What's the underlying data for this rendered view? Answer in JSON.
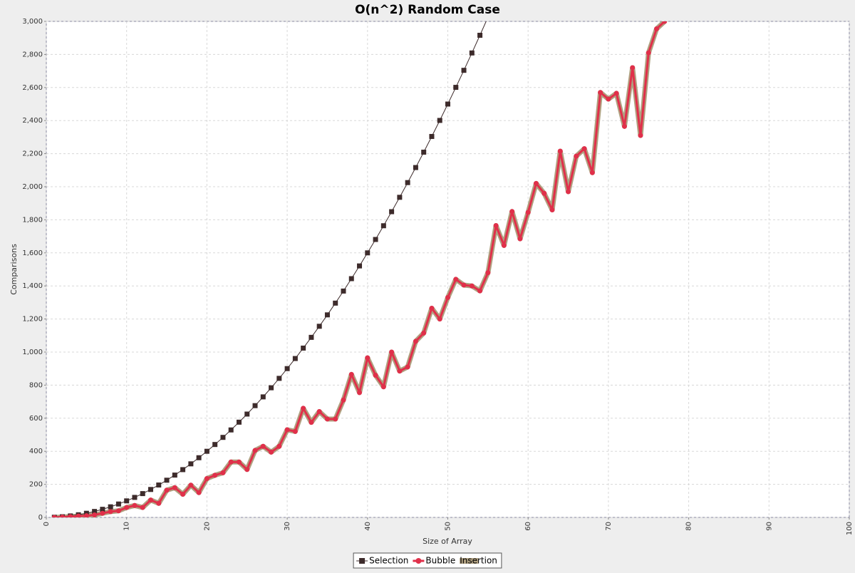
{
  "chart_data": {
    "type": "line",
    "title": "O(n^2) Random Case",
    "x_label": "Size of Array",
    "y_label": "Comparisons",
    "x": [
      1,
      2,
      3,
      4,
      5,
      6,
      7,
      8,
      9,
      10,
      11,
      12,
      13,
      14,
      15,
      16,
      17,
      18,
      19,
      20,
      21,
      22,
      23,
      24,
      25,
      26,
      27,
      28,
      29,
      30,
      31,
      32,
      33,
      34,
      35,
      36,
      37,
      38,
      39,
      40,
      41,
      42,
      43,
      44,
      45,
      46,
      47,
      48,
      49,
      50,
      51,
      52,
      53,
      54,
      55,
      56,
      57,
      58,
      59,
      60,
      61,
      62,
      63,
      64,
      65,
      66,
      67,
      68,
      69,
      70,
      71,
      72,
      73,
      74,
      75,
      76,
      77
    ],
    "series": [
      {
        "name": "Selection",
        "color": "#3d2b2b",
        "marker": "square",
        "values": [
          1,
          4,
          9,
          16,
          25,
          36,
          49,
          64,
          81,
          100,
          121,
          144,
          169,
          196,
          225,
          256,
          289,
          324,
          361,
          400,
          441,
          484,
          529,
          576,
          625,
          676,
          729,
          784,
          841,
          900,
          961,
          1024,
          1089,
          1156,
          1225,
          1296,
          1369,
          1444,
          1521,
          1600,
          1681,
          1764,
          1849,
          1936,
          2025,
          2116,
          2209,
          2304,
          2401,
          2500,
          2601,
          2704,
          2809,
          2916,
          3025,
          null,
          null,
          null,
          null,
          null,
          null,
          null,
          null,
          null,
          null,
          null,
          null,
          null,
          null,
          null,
          null,
          null,
          null,
          null,
          null,
          null,
          null
        ]
      },
      {
        "name": "Bubble",
        "color": "#e0304a",
        "marker": "circle",
        "values": [
          0,
          2,
          5,
          8,
          10,
          15,
          25,
          35,
          40,
          60,
          72,
          60,
          105,
          85,
          165,
          180,
          140,
          195,
          150,
          235,
          255,
          270,
          335,
          335,
          290,
          405,
          430,
          395,
          430,
          530,
          520,
          660,
          575,
          640,
          595,
          595,
          710,
          865,
          755,
          965,
          860,
          790,
          1000,
          885,
          910,
          1065,
          1115,
          1265,
          1200,
          1330,
          1440,
          1405,
          1400,
          1370,
          1480,
          1765,
          1645,
          1850,
          1685,
          1845,
          2020,
          1960,
          1860,
          2215,
          1970,
          2185,
          2230,
          2085,
          2570,
          2530,
          2565,
          2365,
          2720,
          2310,
          2810,
          2955,
          3000
        ]
      },
      {
        "name": "Insertion",
        "color": "#b0a080",
        "marker": "band",
        "values": [
          0,
          2,
          5,
          8,
          10,
          15,
          25,
          35,
          40,
          60,
          72,
          60,
          105,
          85,
          165,
          180,
          140,
          195,
          150,
          235,
          255,
          270,
          335,
          335,
          290,
          405,
          430,
          395,
          430,
          530,
          520,
          660,
          575,
          640,
          595,
          595,
          710,
          865,
          755,
          965,
          860,
          790,
          1000,
          885,
          910,
          1065,
          1115,
          1265,
          1200,
          1330,
          1440,
          1405,
          1400,
          1370,
          1480,
          1765,
          1645,
          1850,
          1685,
          1845,
          2020,
          1960,
          1860,
          2215,
          1970,
          2185,
          2230,
          2085,
          2570,
          2530,
          2565,
          2365,
          2720,
          2310,
          2810,
          2955,
          3000
        ]
      }
    ],
    "xlim": [
      0,
      100
    ],
    "xticks": [
      0,
      10,
      20,
      30,
      40,
      50,
      60,
      70,
      80,
      90,
      100
    ],
    "ylim": [
      0,
      3000
    ],
    "yticks": [
      0,
      200,
      400,
      600,
      800,
      {
        "value": 1000,
        "label": "1,000"
      },
      {
        "value": 1200,
        "label": "1,200"
      },
      {
        "value": 1400,
        "label": "1,400"
      },
      {
        "value": 1600,
        "label": "1,600"
      },
      {
        "value": 1800,
        "label": "1,800"
      },
      {
        "value": 2000,
        "label": "2,000"
      },
      {
        "value": 2200,
        "label": "2,200"
      },
      {
        "value": 2400,
        "label": "2,400"
      },
      {
        "value": 2600,
        "label": "2,600"
      },
      {
        "value": 2800,
        "label": "2,800"
      },
      {
        "value": 3000,
        "label": "3,000"
      }
    ],
    "grid": true,
    "legend": "bottom"
  }
}
